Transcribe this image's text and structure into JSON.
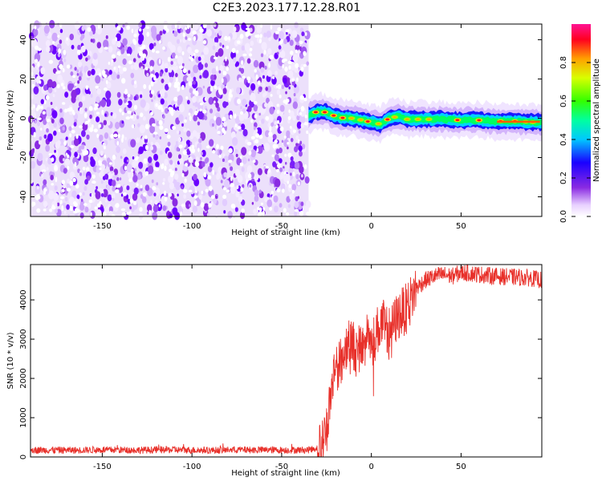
{
  "title": "C2E3.2023.177.12.28.R01",
  "chart_data": [
    {
      "type": "heatmap",
      "xlabel": "Height of straight line (km)",
      "ylabel": "Frequency (Hz)",
      "xlim": [
        -190,
        95
      ],
      "ylim": [
        -50,
        48
      ],
      "xticks": [
        -150,
        -100,
        -50,
        0,
        50
      ],
      "yticks": [
        -40,
        -20,
        0,
        20,
        40
      ],
      "colorbar": {
        "label": "Normalized spectral amplitude",
        "range": [
          0,
          1
        ],
        "ticks": [
          "0.0",
          "0.2",
          "0.4",
          "0.6",
          "0.8"
        ]
      },
      "noise_region_x": [
        -190,
        -35
      ],
      "signal_track": {
        "x": [
          -35,
          -30,
          -25,
          -20,
          -15,
          -10,
          -5,
          0,
          5,
          10,
          15,
          20,
          30,
          40,
          50,
          60,
          70,
          80,
          90,
          95
        ],
        "freq": [
          1.5,
          3.5,
          3.0,
          1.0,
          0.0,
          0.0,
          -1.0,
          -2.0,
          -3.0,
          0.0,
          1.0,
          -0.5,
          -0.5,
          -0.5,
          -1.0,
          -1.0,
          -1.5,
          -1.5,
          -2.0,
          -2.0
        ]
      },
      "grid": false
    },
    {
      "type": "line",
      "xlabel": "Height of straight line (km)",
      "ylabel": "SNR (10 * v/v)",
      "xlim": [
        -190,
        95
      ],
      "ylim": [
        0,
        4900
      ],
      "xticks": [
        -150,
        -100,
        -50,
        0,
        50
      ],
      "yticks": [
        0,
        1000,
        2000,
        3000,
        4000
      ],
      "series": [
        {
          "color": "#e8302a",
          "x": [
            -190,
            -170,
            -150,
            -130,
            -110,
            -90,
            -70,
            -50,
            -35,
            -28,
            -25,
            -22,
            -20,
            -18,
            -15,
            -12,
            -8,
            -5,
            -2,
            0,
            3,
            6,
            10,
            15,
            20,
            25,
            30,
            35,
            40,
            45,
            50,
            60,
            70,
            80,
            90,
            95
          ],
          "y": [
            180,
            170,
            180,
            175,
            180,
            170,
            180,
            175,
            180,
            250,
            700,
            1800,
            2400,
            2300,
            2700,
            3100,
            2600,
            2900,
            3300,
            2800,
            3200,
            3400,
            3200,
            3600,
            3800,
            4300,
            4500,
            4600,
            4650,
            4600,
            4700,
            4650,
            4600,
            4580,
            4550,
            4500
          ]
        }
      ],
      "grid": false
    }
  ]
}
